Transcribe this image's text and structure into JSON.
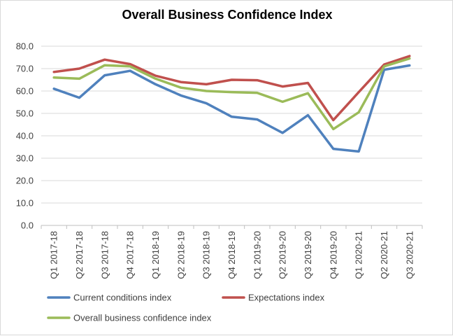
{
  "chart_data": {
    "type": "line",
    "title": "Overall Business Confidence Index",
    "xlabel": "",
    "ylabel": "",
    "x": [
      "Q1 2017-18",
      "Q2 2017-18",
      "Q3 2017-18",
      "Q4 2017-18",
      "Q1 2018-19",
      "Q2 2018-19",
      "Q3 2018-19",
      "Q4 2018-19",
      "Q1 2019-20",
      "Q2 2019-20",
      "Q3 2019-20",
      "Q4 2019-20",
      "Q1 2020-21",
      "Q2 2020-21",
      "Q3 2020-21"
    ],
    "ylim": [
      0,
      80
    ],
    "y_ticks": [
      "0.0",
      "10.0",
      "20.0",
      "30.0",
      "40.0",
      "50.0",
      "60.0",
      "70.0",
      "80.0"
    ],
    "grid": true,
    "legend_position": "bottom",
    "series": [
      {
        "name": "Current conditions index",
        "color": "#4f81bd",
        "values": [
          61.0,
          57.0,
          67.0,
          69.0,
          63.0,
          58.0,
          54.5,
          48.5,
          47.3,
          41.3,
          49.2,
          34.2,
          33.0,
          69.5,
          71.4
        ]
      },
      {
        "name": "Expectations index",
        "color": "#c0504d",
        "values": [
          68.5,
          70.0,
          74.0,
          72.0,
          66.8,
          64.0,
          63.0,
          65.0,
          64.8,
          62.0,
          63.6,
          47.0,
          59.5,
          71.8,
          75.6
        ]
      },
      {
        "name": "Overall business confidence index",
        "color": "#9bbb59",
        "values": [
          66.0,
          65.5,
          71.5,
          71.0,
          65.5,
          61.5,
          60.0,
          59.5,
          59.2,
          55.2,
          59.0,
          43.0,
          50.5,
          71.0,
          74.5
        ]
      }
    ]
  }
}
